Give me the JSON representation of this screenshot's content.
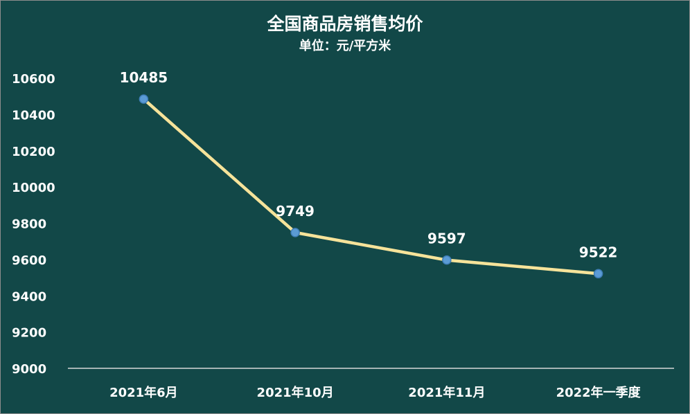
{
  "chart_data": {
    "type": "line",
    "title": "全国商品房销售均价",
    "subtitle": "单位：元/平方米",
    "categories": [
      "2021年6月",
      "2021年10月",
      "2021年11月",
      "2022年一季度"
    ],
    "values": [
      10485,
      9749,
      9597,
      9522
    ],
    "data_labels": [
      "10485",
      "9749",
      "9597",
      "9522"
    ],
    "ylim": [
      9000,
      10600
    ],
    "yticks": [
      9000,
      9200,
      9400,
      9600,
      9800,
      10000,
      10200,
      10400,
      10600
    ],
    "ytick_labels": [
      "9000",
      "9200",
      "9400",
      "9600",
      "9800",
      "10000",
      "10200",
      "10400",
      "10600"
    ],
    "grid": false,
    "legend": "none",
    "colors": {
      "background": "#124848",
      "line": "#f6e39a",
      "marker": "#5b9bd5",
      "text": "#ffffff",
      "axis": "#d8d8d8"
    }
  }
}
